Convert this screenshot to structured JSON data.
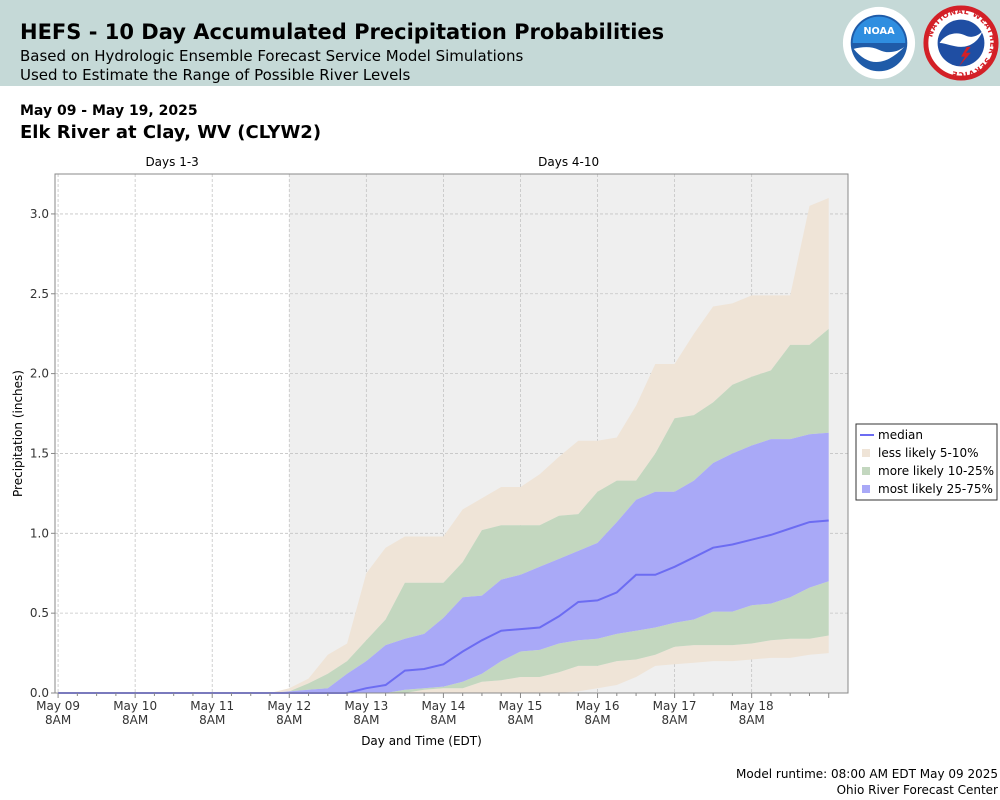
{
  "header": {
    "title": "HEFS - 10 Day Accumulated Precipitation Probabilities",
    "subtitle1": "Based on Hydrologic Ensemble Forecast Service Model Simulations",
    "subtitle2": "Used to Estimate the Range of Possible River Levels",
    "noaa_logo_text": "NOAA",
    "nws_logo_text": "NATIONAL WEATHER SERVICE"
  },
  "info": {
    "date_range": "May 09 - May 19, 2025",
    "station": "Elk River at Clay, WV (CLYW2)"
  },
  "footer": {
    "runtime": "Model runtime: 08:00 AM EDT May 09 2025",
    "center": "Ohio River Forecast Center"
  },
  "chart_data": {
    "type": "area",
    "xlabel": "Day and Time (EDT)",
    "ylabel": "Precipitation (inches)",
    "ylim": [
      0,
      3.25
    ],
    "xlim_days": [
      -0.04,
      10.25
    ],
    "yticks": [
      0.0,
      0.5,
      1.0,
      1.5,
      2.0,
      2.5,
      3.0
    ],
    "ytick_labels": [
      "0.0",
      "0.5",
      "1.0",
      "1.5",
      "2.0",
      "2.5",
      "3.0"
    ],
    "xticks": [
      {
        "day": 0,
        "label1": "May 09",
        "label2": "8AM"
      },
      {
        "day": 1,
        "label1": "May 10",
        "label2": "8AM"
      },
      {
        "day": 2,
        "label1": "May 11",
        "label2": "8AM"
      },
      {
        "day": 3,
        "label1": "May 12",
        "label2": "8AM"
      },
      {
        "day": 4,
        "label1": "May 13",
        "label2": "8AM"
      },
      {
        "day": 5,
        "label1": "May 14",
        "label2": "8AM"
      },
      {
        "day": 6,
        "label1": "May 15",
        "label2": "8AM"
      },
      {
        "day": 7,
        "label1": "May 16",
        "label2": "8AM"
      },
      {
        "day": 8,
        "label1": "May 17",
        "label2": "8AM"
      },
      {
        "day": 9,
        "label1": "May 18",
        "label2": "8AM"
      }
    ],
    "period_labels": [
      {
        "label": "Days 1-3",
        "start": -0.04,
        "end": 3
      },
      {
        "label": "Days 4-10",
        "start": 3,
        "end": 10.25
      }
    ],
    "shaded_region_start_day": 3,
    "grid": true,
    "legend_position": "right",
    "legend": [
      {
        "label": "median",
        "color": "#6c6cf2",
        "kind": "line"
      },
      {
        "label": "less likely 5-10%",
        "color": "#efe4d7",
        "kind": "box"
      },
      {
        "label": "more likely 10-25%",
        "color": "#c3d7bf",
        "kind": "box"
      },
      {
        "label": "most likely 25-75%",
        "color": "#a9a9f7",
        "kind": "box"
      }
    ],
    "x_days": [
      0,
      0.25,
      0.5,
      0.75,
      1,
      1.25,
      1.5,
      1.75,
      2,
      2.25,
      2.5,
      2.75,
      3,
      3.25,
      3.5,
      3.75,
      4,
      4.25,
      4.5,
      4.75,
      5,
      5.25,
      5.5,
      5.75,
      6,
      6.25,
      6.5,
      6.75,
      7,
      7.25,
      7.5,
      7.75,
      8,
      8.25,
      8.5,
      8.75,
      9,
      9.25,
      9.5,
      9.75,
      10
    ],
    "bands": {
      "p5": [
        0,
        0,
        0,
        0,
        0,
        0,
        0,
        0,
        0,
        0,
        0,
        0,
        0,
        0,
        0,
        0,
        0,
        0,
        0,
        0,
        0,
        0,
        0,
        0,
        0,
        0,
        0,
        0.01,
        0.03,
        0.05,
        0.1,
        0.17,
        0.18,
        0.19,
        0.2,
        0.2,
        0.21,
        0.22,
        0.22,
        0.24,
        0.25
      ],
      "p10": [
        0,
        0,
        0,
        0,
        0,
        0,
        0,
        0,
        0,
        0,
        0,
        0,
        0,
        0,
        0,
        0,
        0,
        0,
        0,
        0.02,
        0.03,
        0.03,
        0.07,
        0.08,
        0.1,
        0.1,
        0.13,
        0.17,
        0.17,
        0.2,
        0.21,
        0.24,
        0.29,
        0.3,
        0.3,
        0.3,
        0.31,
        0.33,
        0.34,
        0.34,
        0.36
      ],
      "p25": [
        0,
        0,
        0,
        0,
        0,
        0,
        0,
        0,
        0,
        0,
        0,
        0,
        0,
        0,
        0,
        0,
        0,
        0,
        0.02,
        0.03,
        0.04,
        0.07,
        0.12,
        0.2,
        0.26,
        0.27,
        0.31,
        0.33,
        0.34,
        0.37,
        0.39,
        0.41,
        0.44,
        0.46,
        0.51,
        0.51,
        0.55,
        0.56,
        0.6,
        0.66,
        0.7
      ],
      "p75": [
        0,
        0,
        0,
        0,
        0,
        0,
        0,
        0,
        0,
        0,
        0,
        0,
        0.01,
        0.02,
        0.03,
        0.12,
        0.2,
        0.3,
        0.34,
        0.37,
        0.47,
        0.6,
        0.61,
        0.71,
        0.74,
        0.79,
        0.84,
        0.89,
        0.94,
        1.07,
        1.21,
        1.26,
        1.26,
        1.33,
        1.44,
        1.5,
        1.55,
        1.59,
        1.59,
        1.62,
        1.63
      ],
      "p90": [
        0,
        0,
        0,
        0,
        0,
        0,
        0,
        0,
        0,
        0,
        0,
        0,
        0.01,
        0.06,
        0.12,
        0.2,
        0.33,
        0.46,
        0.69,
        0.69,
        0.69,
        0.82,
        1.02,
        1.05,
        1.05,
        1.05,
        1.11,
        1.12,
        1.26,
        1.33,
        1.33,
        1.5,
        1.72,
        1.74,
        1.82,
        1.93,
        1.98,
        2.02,
        2.18,
        2.18,
        2.28
      ],
      "p95": [
        0,
        0,
        0,
        0,
        0,
        0,
        0,
        0,
        0,
        0,
        0,
        0,
        0.03,
        0.09,
        0.24,
        0.31,
        0.75,
        0.91,
        0.98,
        0.98,
        0.98,
        1.15,
        1.22,
        1.29,
        1.29,
        1.37,
        1.48,
        1.58,
        1.58,
        1.6,
        1.8,
        2.06,
        2.06,
        2.25,
        2.42,
        2.44,
        2.49,
        2.49,
        2.49,
        3.05,
        3.1
      ],
      "median": [
        0,
        0,
        0,
        0,
        0,
        0,
        0,
        0,
        0,
        0,
        0,
        0,
        0,
        0,
        0,
        0,
        0.03,
        0.05,
        0.14,
        0.15,
        0.18,
        0.26,
        0.33,
        0.39,
        0.4,
        0.41,
        0.48,
        0.57,
        0.58,
        0.63,
        0.74,
        0.74,
        0.79,
        0.85,
        0.91,
        0.93,
        0.96,
        0.99,
        1.03,
        1.07,
        1.08
      ]
    }
  }
}
